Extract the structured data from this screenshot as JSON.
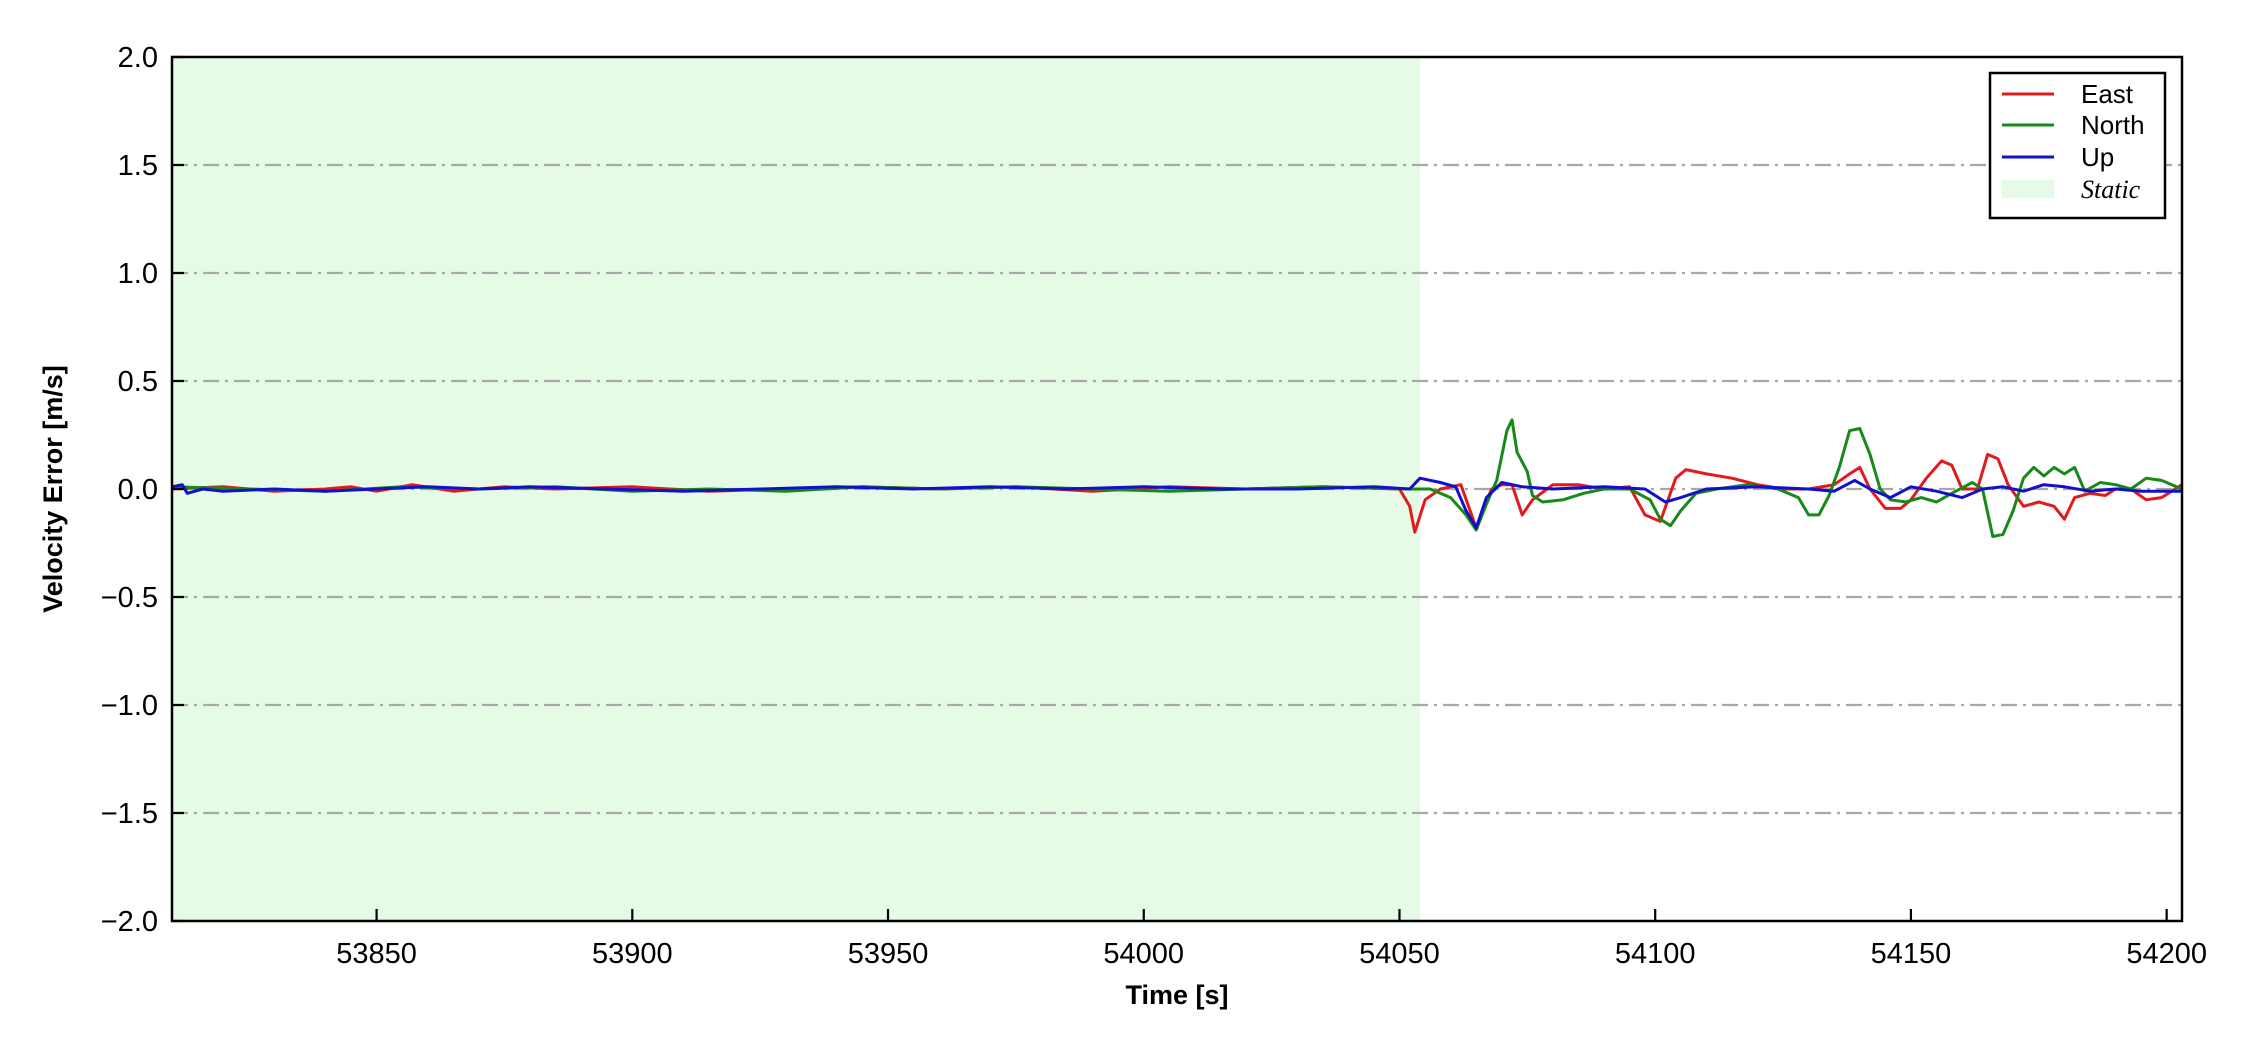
{
  "chart_data": {
    "type": "line",
    "title": "",
    "xlabel": "Time [s]",
    "ylabel": "Velocity Error [m/s]",
    "xlim": [
      53810,
      54203
    ],
    "ylim": [
      -2.0,
      2.0
    ],
    "xticks": [
      53850,
      53900,
      53950,
      54000,
      54050,
      54100,
      54150,
      54200
    ],
    "xtick_labels": [
      "53850",
      "53900",
      "53950",
      "54000",
      "54050",
      "54100",
      "54150",
      "54200"
    ],
    "yticks": [
      -2.0,
      -1.5,
      -1.0,
      -0.5,
      0.0,
      0.5,
      1.0,
      1.5,
      2.0
    ],
    "ytick_labels": [
      "−2.0",
      "−1.5",
      "−1.0",
      "−0.5",
      "0.0",
      "0.5",
      "1.0",
      "1.5",
      "2.0"
    ],
    "grid": "horizontal dash-dot",
    "legend_position": "top-right",
    "static_region": {
      "label": "Static",
      "x_start": 53810,
      "x_end": 54054,
      "color": "#e6fbe6"
    },
    "series": [
      {
        "name": "East",
        "color": "#e31a1c",
        "points": [
          [
            53810,
            0.0
          ],
          [
            53820,
            0.01
          ],
          [
            53830,
            -0.01
          ],
          [
            53840,
            0.0
          ],
          [
            53845,
            0.01
          ],
          [
            53850,
            -0.01
          ],
          [
            53857,
            0.02
          ],
          [
            53865,
            -0.01
          ],
          [
            53875,
            0.01
          ],
          [
            53885,
            0.0
          ],
          [
            53900,
            0.01
          ],
          [
            53915,
            -0.01
          ],
          [
            53930,
            0.0
          ],
          [
            53945,
            0.01
          ],
          [
            53960,
            0.0
          ],
          [
            53975,
            0.01
          ],
          [
            53990,
            -0.01
          ],
          [
            54005,
            0.01
          ],
          [
            54020,
            0.0
          ],
          [
            54035,
            0.01
          ],
          [
            54050,
            0.0
          ],
          [
            54052,
            -0.08
          ],
          [
            54053,
            -0.2
          ],
          [
            54055,
            -0.05
          ],
          [
            54058,
            0.0
          ],
          [
            54062,
            0.02
          ],
          [
            54065,
            -0.18
          ],
          [
            54068,
            0.0
          ],
          [
            54070,
            0.02
          ],
          [
            54072,
            0.02
          ],
          [
            54074,
            -0.12
          ],
          [
            54076,
            -0.05
          ],
          [
            54080,
            0.02
          ],
          [
            54085,
            0.02
          ],
          [
            54090,
            0.0
          ],
          [
            54095,
            0.01
          ],
          [
            54098,
            -0.12
          ],
          [
            54101,
            -0.15
          ],
          [
            54104,
            0.05
          ],
          [
            54106,
            0.09
          ],
          [
            54110,
            0.07
          ],
          [
            54115,
            0.05
          ],
          [
            54120,
            0.02
          ],
          [
            54125,
            0.0
          ],
          [
            54130,
            0.0
          ],
          [
            54135,
            0.02
          ],
          [
            54138,
            0.07
          ],
          [
            54140,
            0.1
          ],
          [
            54142,
            0.0
          ],
          [
            54145,
            -0.09
          ],
          [
            54148,
            -0.09
          ],
          [
            54150,
            -0.05
          ],
          [
            54153,
            0.05
          ],
          [
            54156,
            0.13
          ],
          [
            54158,
            0.11
          ],
          [
            54160,
            0.0
          ],
          [
            54163,
            0.0
          ],
          [
            54165,
            0.16
          ],
          [
            54167,
            0.14
          ],
          [
            54169,
            0.02
          ],
          [
            54172,
            -0.08
          ],
          [
            54175,
            -0.06
          ],
          [
            54178,
            -0.08
          ],
          [
            54180,
            -0.14
          ],
          [
            54182,
            -0.04
          ],
          [
            54185,
            -0.02
          ],
          [
            54188,
            -0.03
          ],
          [
            54190,
            0.0
          ],
          [
            54193,
            0.0
          ],
          [
            54196,
            -0.05
          ],
          [
            54199,
            -0.04
          ],
          [
            54203,
            0.02
          ]
        ]
      },
      {
        "name": "North",
        "color": "#168a16",
        "points": [
          [
            53810,
            0.01
          ],
          [
            53825,
            0.0
          ],
          [
            53840,
            -0.01
          ],
          [
            53855,
            0.01
          ],
          [
            53870,
            0.0
          ],
          [
            53885,
            0.01
          ],
          [
            53900,
            -0.01
          ],
          [
            53915,
            0.0
          ],
          [
            53930,
            -0.01
          ],
          [
            53945,
            0.01
          ],
          [
            53960,
            0.0
          ],
          [
            53975,
            0.01
          ],
          [
            53990,
            0.0
          ],
          [
            54005,
            -0.01
          ],
          [
            54020,
            0.0
          ],
          [
            54035,
            0.01
          ],
          [
            54052,
            0.0
          ],
          [
            54056,
            0.0
          ],
          [
            54060,
            -0.04
          ],
          [
            54063,
            -0.12
          ],
          [
            54065,
            -0.19
          ],
          [
            54067,
            -0.07
          ],
          [
            54069,
            0.04
          ],
          [
            54071,
            0.27
          ],
          [
            54072,
            0.32
          ],
          [
            54073,
            0.17
          ],
          [
            54075,
            0.08
          ],
          [
            54076,
            -0.03
          ],
          [
            54078,
            -0.06
          ],
          [
            54082,
            -0.05
          ],
          [
            54086,
            -0.02
          ],
          [
            54090,
            0.0
          ],
          [
            54095,
            0.0
          ],
          [
            54099,
            -0.05
          ],
          [
            54101,
            -0.14
          ],
          [
            54103,
            -0.17
          ],
          [
            54105,
            -0.1
          ],
          [
            54108,
            -0.02
          ],
          [
            54112,
            0.0
          ],
          [
            54118,
            0.02
          ],
          [
            54124,
            0.0
          ],
          [
            54128,
            -0.04
          ],
          [
            54130,
            -0.12
          ],
          [
            54132,
            -0.12
          ],
          [
            54134,
            -0.03
          ],
          [
            54136,
            0.1
          ],
          [
            54138,
            0.27
          ],
          [
            54140,
            0.28
          ],
          [
            54142,
            0.16
          ],
          [
            54144,
            0.0
          ],
          [
            54146,
            -0.05
          ],
          [
            54149,
            -0.06
          ],
          [
            54152,
            -0.04
          ],
          [
            54155,
            -0.06
          ],
          [
            54158,
            -0.02
          ],
          [
            54162,
            0.03
          ],
          [
            54164,
            0.0
          ],
          [
            54166,
            -0.22
          ],
          [
            54168,
            -0.21
          ],
          [
            54170,
            -0.1
          ],
          [
            54172,
            0.05
          ],
          [
            54174,
            0.1
          ],
          [
            54176,
            0.06
          ],
          [
            54178,
            0.1
          ],
          [
            54180,
            0.07
          ],
          [
            54182,
            0.1
          ],
          [
            54184,
            -0.01
          ],
          [
            54187,
            0.03
          ],
          [
            54190,
            0.02
          ],
          [
            54193,
            0.0
          ],
          [
            54196,
            0.05
          ],
          [
            54199,
            0.04
          ],
          [
            54203,
            0.0
          ]
        ]
      },
      {
        "name": "Up",
        "color": "#1111cc",
        "points": [
          [
            53810,
            0.01
          ],
          [
            53812,
            0.02
          ],
          [
            53813,
            -0.02
          ],
          [
            53816,
            0.0
          ],
          [
            53820,
            -0.01
          ],
          [
            53830,
            0.0
          ],
          [
            53840,
            -0.01
          ],
          [
            53850,
            0.0
          ],
          [
            53860,
            0.01
          ],
          [
            53870,
            0.0
          ],
          [
            53880,
            0.01
          ],
          [
            53895,
            0.0
          ],
          [
            53910,
            -0.01
          ],
          [
            53925,
            0.0
          ],
          [
            53940,
            0.01
          ],
          [
            53955,
            0.0
          ],
          [
            53970,
            0.01
          ],
          [
            53985,
            0.0
          ],
          [
            54000,
            0.01
          ],
          [
            54015,
            0.0
          ],
          [
            54030,
            0.0
          ],
          [
            54045,
            0.01
          ],
          [
            54052,
            0.0
          ],
          [
            54054,
            0.05
          ],
          [
            54058,
            0.03
          ],
          [
            54061,
            0.01
          ],
          [
            54063,
            -0.1
          ],
          [
            54065,
            -0.18
          ],
          [
            54067,
            -0.04
          ],
          [
            54070,
            0.03
          ],
          [
            54074,
            0.01
          ],
          [
            54080,
            0.0
          ],
          [
            54090,
            0.01
          ],
          [
            54098,
            0.0
          ],
          [
            54102,
            -0.06
          ],
          [
            54105,
            -0.04
          ],
          [
            54110,
            0.0
          ],
          [
            54120,
            0.01
          ],
          [
            54130,
            0.0
          ],
          [
            54135,
            -0.01
          ],
          [
            54139,
            0.04
          ],
          [
            54142,
            0.0
          ],
          [
            54146,
            -0.04
          ],
          [
            54150,
            0.01
          ],
          [
            54155,
            -0.01
          ],
          [
            54160,
            -0.04
          ],
          [
            54164,
            0.0
          ],
          [
            54168,
            0.01
          ],
          [
            54172,
            -0.01
          ],
          [
            54176,
            0.02
          ],
          [
            54180,
            0.01
          ],
          [
            54185,
            -0.01
          ],
          [
            54190,
            0.0
          ],
          [
            54195,
            -0.01
          ],
          [
            54203,
            -0.01
          ]
        ]
      }
    ]
  }
}
